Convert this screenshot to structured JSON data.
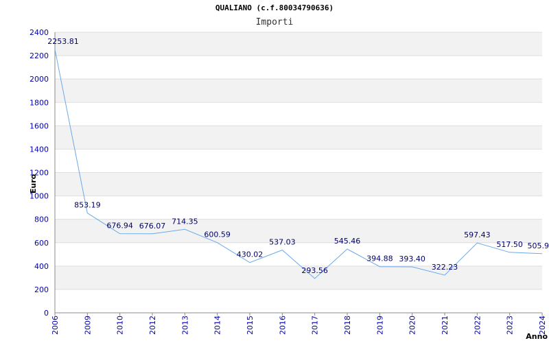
{
  "chart_data": {
    "type": "line",
    "title": "QUALIANO (c.f.80034790636)",
    "subtitle": "Importi",
    "xlabel": "Anno",
    "ylabel": "Euro",
    "ylim": [
      0,
      2400
    ],
    "y_ticks": [
      0,
      200,
      400,
      600,
      800,
      1000,
      1200,
      1400,
      1600,
      1800,
      2000,
      2200,
      2400
    ],
    "categories": [
      "2006",
      "2009",
      "2010",
      "2012",
      "2013",
      "2014",
      "2015",
      "2016",
      "2017",
      "2018",
      "2019",
      "2020",
      "2021",
      "2022",
      "2023",
      "2024"
    ],
    "values": [
      2253.81,
      853.19,
      676.94,
      676.07,
      714.35,
      600.59,
      430.02,
      537.03,
      293.56,
      545.46,
      394.88,
      393.4,
      322.23,
      597.43,
      517.5,
      505.9
    ],
    "data_labels": [
      "2253.81",
      "853.19",
      "676.94",
      "676.07",
      "714.35",
      "600.59",
      "430.02",
      "537.03",
      "293.56",
      "545.46",
      "394.88",
      "393.40",
      "322.23",
      "597.43",
      "517.50",
      "505.9"
    ],
    "grid": true,
    "legend": "none",
    "colors": {
      "line": "#6aa9e6",
      "band": "#f2f2f2",
      "grid": "#dddddd",
      "tick_text": "#0000aa",
      "label_text": "#000066"
    }
  }
}
